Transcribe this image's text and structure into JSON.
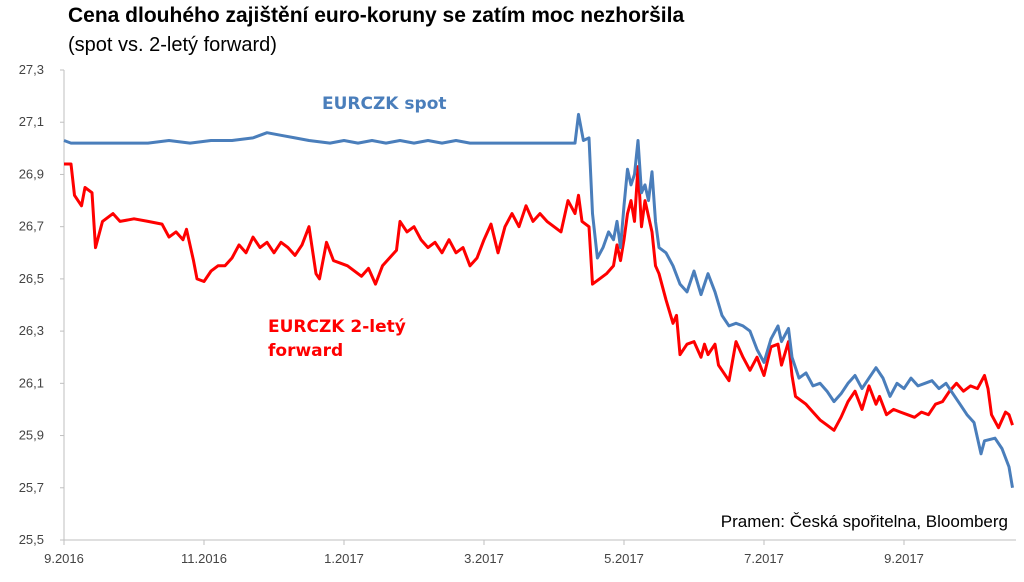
{
  "chart_data": {
    "type": "line",
    "title": "Cena dlouhého zajištění euro-koruny se zatím moc nezhoršila",
    "subtitle": "(spot vs. 2-letý forward)",
    "source": "Pramen: Česká spořitelna, Bloomberg",
    "ylim": [
      25.5,
      27.3
    ],
    "y_ticks": [
      "27,3",
      "27,1",
      "26,9",
      "26,7",
      "26,5",
      "26,3",
      "26,1",
      "25,9",
      "25,7",
      "25,5"
    ],
    "x_tick_labels": [
      "9.2016",
      "11.2016",
      "1.2017",
      "3.2017",
      "5.2017",
      "7.2017",
      "9.2017"
    ],
    "x_range_months": [
      0,
      13.6
    ],
    "grid": false,
    "series": [
      {
        "name": "EURCZK spot",
        "label_lines": [
          "EURCZK spot"
        ],
        "color": "#4a7ebb",
        "points": [
          [
            0.0,
            27.03
          ],
          [
            0.1,
            27.02
          ],
          [
            0.3,
            27.02
          ],
          [
            0.6,
            27.02
          ],
          [
            0.9,
            27.02
          ],
          [
            1.2,
            27.02
          ],
          [
            1.5,
            27.03
          ],
          [
            1.8,
            27.02
          ],
          [
            2.1,
            27.03
          ],
          [
            2.4,
            27.03
          ],
          [
            2.7,
            27.04
          ],
          [
            2.9,
            27.06
          ],
          [
            3.1,
            27.05
          ],
          [
            3.3,
            27.04
          ],
          [
            3.5,
            27.03
          ],
          [
            3.8,
            27.02
          ],
          [
            4.0,
            27.03
          ],
          [
            4.2,
            27.02
          ],
          [
            4.4,
            27.03
          ],
          [
            4.6,
            27.02
          ],
          [
            4.8,
            27.03
          ],
          [
            5.0,
            27.02
          ],
          [
            5.2,
            27.03
          ],
          [
            5.4,
            27.02
          ],
          [
            5.6,
            27.03
          ],
          [
            5.8,
            27.02
          ],
          [
            6.0,
            27.02
          ],
          [
            6.3,
            27.02
          ],
          [
            6.6,
            27.02
          ],
          [
            6.9,
            27.02
          ],
          [
            7.2,
            27.02
          ],
          [
            7.3,
            27.02
          ],
          [
            7.35,
            27.13
          ],
          [
            7.42,
            27.03
          ],
          [
            7.5,
            27.04
          ],
          [
            7.55,
            26.75
          ],
          [
            7.62,
            26.58
          ],
          [
            7.7,
            26.62
          ],
          [
            7.78,
            26.68
          ],
          [
            7.85,
            26.65
          ],
          [
            7.9,
            26.72
          ],
          [
            7.95,
            26.62
          ],
          [
            8.0,
            26.78
          ],
          [
            8.05,
            26.92
          ],
          [
            8.1,
            26.86
          ],
          [
            8.15,
            26.9
          ],
          [
            8.2,
            27.03
          ],
          [
            8.25,
            26.83
          ],
          [
            8.3,
            26.86
          ],
          [
            8.35,
            26.8
          ],
          [
            8.4,
            26.91
          ],
          [
            8.45,
            26.72
          ],
          [
            8.5,
            26.62
          ],
          [
            8.6,
            26.6
          ],
          [
            8.7,
            26.55
          ],
          [
            8.8,
            26.48
          ],
          [
            8.9,
            26.45
          ],
          [
            9.0,
            26.53
          ],
          [
            9.1,
            26.44
          ],
          [
            9.2,
            26.52
          ],
          [
            9.3,
            26.45
          ],
          [
            9.4,
            26.36
          ],
          [
            9.5,
            26.32
          ],
          [
            9.6,
            26.33
          ],
          [
            9.7,
            26.32
          ],
          [
            9.8,
            26.3
          ],
          [
            9.9,
            26.23
          ],
          [
            10.0,
            26.18
          ],
          [
            10.1,
            26.27
          ],
          [
            10.2,
            26.32
          ],
          [
            10.25,
            26.26
          ],
          [
            10.35,
            26.31
          ],
          [
            10.4,
            26.2
          ],
          [
            10.5,
            26.12
          ],
          [
            10.6,
            26.14
          ],
          [
            10.7,
            26.09
          ],
          [
            10.8,
            26.1
          ],
          [
            10.9,
            26.07
          ],
          [
            11.0,
            26.03
          ],
          [
            11.1,
            26.06
          ],
          [
            11.2,
            26.1
          ],
          [
            11.3,
            26.13
          ],
          [
            11.4,
            26.08
          ],
          [
            11.5,
            26.12
          ],
          [
            11.6,
            26.16
          ],
          [
            11.7,
            26.12
          ],
          [
            11.8,
            26.05
          ],
          [
            11.9,
            26.1
          ],
          [
            12.0,
            26.08
          ],
          [
            12.1,
            26.12
          ],
          [
            12.2,
            26.09
          ],
          [
            12.3,
            26.1
          ],
          [
            12.4,
            26.11
          ],
          [
            12.5,
            26.08
          ],
          [
            12.6,
            26.1
          ],
          [
            12.7,
            26.06
          ],
          [
            12.8,
            26.02
          ],
          [
            12.9,
            25.98
          ],
          [
            13.0,
            25.95
          ],
          [
            13.1,
            25.83
          ],
          [
            13.15,
            25.88
          ],
          [
            13.3,
            25.89
          ],
          [
            13.4,
            25.85
          ],
          [
            13.5,
            25.78
          ],
          [
            13.55,
            25.7
          ]
        ]
      },
      {
        "name": "EURCZK 2-letý forward",
        "label_lines": [
          "EURCZK 2-letý",
          "forward"
        ],
        "color": "#ff0000",
        "points": [
          [
            0.0,
            26.94
          ],
          [
            0.1,
            26.94
          ],
          [
            0.15,
            26.82
          ],
          [
            0.25,
            26.78
          ],
          [
            0.3,
            26.85
          ],
          [
            0.4,
            26.83
          ],
          [
            0.45,
            26.62
          ],
          [
            0.55,
            26.72
          ],
          [
            0.7,
            26.75
          ],
          [
            0.8,
            26.72
          ],
          [
            1.0,
            26.73
          ],
          [
            1.2,
            26.72
          ],
          [
            1.4,
            26.71
          ],
          [
            1.5,
            26.66
          ],
          [
            1.6,
            26.68
          ],
          [
            1.7,
            26.65
          ],
          [
            1.75,
            26.69
          ],
          [
            1.85,
            26.57
          ],
          [
            1.9,
            26.5
          ],
          [
            2.0,
            26.49
          ],
          [
            2.1,
            26.53
          ],
          [
            2.2,
            26.55
          ],
          [
            2.3,
            26.55
          ],
          [
            2.4,
            26.58
          ],
          [
            2.5,
            26.63
          ],
          [
            2.6,
            26.6
          ],
          [
            2.7,
            26.66
          ],
          [
            2.8,
            26.62
          ],
          [
            2.9,
            26.64
          ],
          [
            3.0,
            26.6
          ],
          [
            3.1,
            26.64
          ],
          [
            3.2,
            26.62
          ],
          [
            3.3,
            26.59
          ],
          [
            3.4,
            26.63
          ],
          [
            3.5,
            26.7
          ],
          [
            3.6,
            26.52
          ],
          [
            3.65,
            26.5
          ],
          [
            3.75,
            26.64
          ],
          [
            3.85,
            26.57
          ],
          [
            3.95,
            26.56
          ],
          [
            4.05,
            26.55
          ],
          [
            4.15,
            26.53
          ],
          [
            4.25,
            26.51
          ],
          [
            4.35,
            26.54
          ],
          [
            4.45,
            26.48
          ],
          [
            4.55,
            26.55
          ],
          [
            4.65,
            26.58
          ],
          [
            4.75,
            26.61
          ],
          [
            4.8,
            26.72
          ],
          [
            4.9,
            26.68
          ],
          [
            5.0,
            26.7
          ],
          [
            5.1,
            26.65
          ],
          [
            5.2,
            26.62
          ],
          [
            5.3,
            26.64
          ],
          [
            5.4,
            26.6
          ],
          [
            5.5,
            26.65
          ],
          [
            5.6,
            26.6
          ],
          [
            5.7,
            26.62
          ],
          [
            5.8,
            26.55
          ],
          [
            5.9,
            26.58
          ],
          [
            6.0,
            26.65
          ],
          [
            6.1,
            26.71
          ],
          [
            6.2,
            26.6
          ],
          [
            6.3,
            26.7
          ],
          [
            6.4,
            26.75
          ],
          [
            6.5,
            26.7
          ],
          [
            6.6,
            26.78
          ],
          [
            6.7,
            26.72
          ],
          [
            6.8,
            26.75
          ],
          [
            6.9,
            26.72
          ],
          [
            7.0,
            26.7
          ],
          [
            7.1,
            26.68
          ],
          [
            7.2,
            26.8
          ],
          [
            7.3,
            26.75
          ],
          [
            7.35,
            26.82
          ],
          [
            7.4,
            26.72
          ],
          [
            7.5,
            26.7
          ],
          [
            7.55,
            26.48
          ],
          [
            7.65,
            26.5
          ],
          [
            7.75,
            26.52
          ],
          [
            7.85,
            26.55
          ],
          [
            7.9,
            26.63
          ],
          [
            7.95,
            26.57
          ],
          [
            8.0,
            26.65
          ],
          [
            8.05,
            26.75
          ],
          [
            8.1,
            26.8
          ],
          [
            8.15,
            26.72
          ],
          [
            8.2,
            26.93
          ],
          [
            8.25,
            26.7
          ],
          [
            8.3,
            26.8
          ],
          [
            8.4,
            26.68
          ],
          [
            8.45,
            26.55
          ],
          [
            8.5,
            26.52
          ],
          [
            8.6,
            26.42
          ],
          [
            8.7,
            26.33
          ],
          [
            8.75,
            26.36
          ],
          [
            8.8,
            26.21
          ],
          [
            8.9,
            26.25
          ],
          [
            9.0,
            26.26
          ],
          [
            9.1,
            26.2
          ],
          [
            9.15,
            26.25
          ],
          [
            9.2,
            26.21
          ],
          [
            9.3,
            26.25
          ],
          [
            9.35,
            26.17
          ],
          [
            9.4,
            26.15
          ],
          [
            9.5,
            26.11
          ],
          [
            9.6,
            26.26
          ],
          [
            9.7,
            26.2
          ],
          [
            9.8,
            26.15
          ],
          [
            9.9,
            26.2
          ],
          [
            10.0,
            26.13
          ],
          [
            10.1,
            26.24
          ],
          [
            10.2,
            26.25
          ],
          [
            10.25,
            26.17
          ],
          [
            10.35,
            26.26
          ],
          [
            10.4,
            26.13
          ],
          [
            10.45,
            26.05
          ],
          [
            10.6,
            26.02
          ],
          [
            10.7,
            25.99
          ],
          [
            10.8,
            25.96
          ],
          [
            10.9,
            25.94
          ],
          [
            11.0,
            25.92
          ],
          [
            11.1,
            25.97
          ],
          [
            11.2,
            26.03
          ],
          [
            11.3,
            26.07
          ],
          [
            11.4,
            26.0
          ],
          [
            11.5,
            26.09
          ],
          [
            11.6,
            26.02
          ],
          [
            11.65,
            26.05
          ],
          [
            11.75,
            25.98
          ],
          [
            11.85,
            26.0
          ],
          [
            11.95,
            25.99
          ],
          [
            12.05,
            25.98
          ],
          [
            12.15,
            25.97
          ],
          [
            12.25,
            25.99
          ],
          [
            12.35,
            25.98
          ],
          [
            12.45,
            26.02
          ],
          [
            12.55,
            26.03
          ],
          [
            12.65,
            26.07
          ],
          [
            12.75,
            26.1
          ],
          [
            12.85,
            26.07
          ],
          [
            12.95,
            26.09
          ],
          [
            13.05,
            26.08
          ],
          [
            13.15,
            26.13
          ],
          [
            13.2,
            26.08
          ],
          [
            13.25,
            25.98
          ],
          [
            13.35,
            25.93
          ],
          [
            13.45,
            25.99
          ],
          [
            13.5,
            25.98
          ],
          [
            13.55,
            25.94
          ]
        ]
      }
    ]
  }
}
